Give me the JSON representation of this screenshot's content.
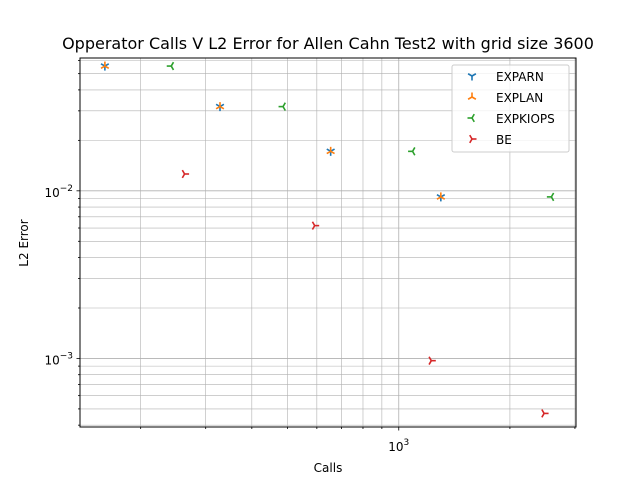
{
  "chart_data": {
    "type": "scatter",
    "title": "Opperator Calls V L2 Error for Allen Cahn Test2 with grid size 3600",
    "xlabel": "Calls",
    "ylabel": "L2 Error",
    "xscale": "log",
    "yscale": "log",
    "xlim": [
      137,
      3020
    ],
    "ylim": [
      0.00039,
      0.062
    ],
    "grid": "both major and minor",
    "legend_position": "top-right",
    "x_tick_labels": [
      {
        "value": 1000,
        "base": "10",
        "exp": "3"
      }
    ],
    "y_tick_labels": [
      {
        "value": 0.001,
        "base": "10",
        "exp": "−3"
      },
      {
        "value": 0.01,
        "base": "10",
        "exp": "−2"
      }
    ],
    "series": [
      {
        "name": "EXPARN",
        "marker": "tri_down",
        "color": "#1f77b4",
        "points": [
          [
            160,
            0.0555
          ],
          [
            328,
            0.0318
          ],
          [
            654,
            0.0172
          ],
          [
            1300,
            0.0092
          ]
        ]
      },
      {
        "name": "EXPLAN",
        "marker": "tri_up",
        "color": "#ff7f0e",
        "points": [
          [
            160,
            0.0555
          ],
          [
            328,
            0.0318
          ],
          [
            654,
            0.0172
          ],
          [
            1300,
            0.0092
          ]
        ]
      },
      {
        "name": "EXPKIOPS",
        "marker": "tri_left",
        "color": "#2ca02c",
        "points": [
          [
            242,
            0.0555
          ],
          [
            486,
            0.0318
          ],
          [
            1090,
            0.0172
          ],
          [
            2590,
            0.0092
          ]
        ]
      },
      {
        "name": "BE",
        "marker": "tri_right",
        "color": "#d62728",
        "points": [
          [
            263,
            0.0126
          ],
          [
            592,
            0.0062
          ],
          [
            1225,
            0.00097
          ],
          [
            2475,
            0.00047
          ]
        ]
      }
    ]
  }
}
